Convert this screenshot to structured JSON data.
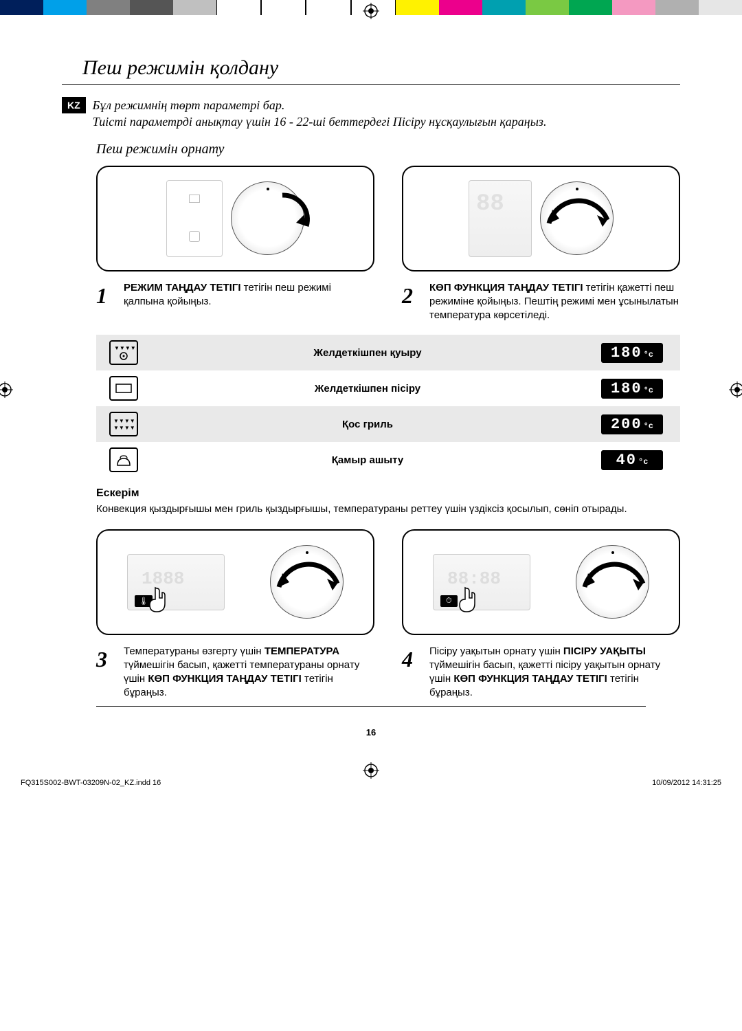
{
  "colorBar": [
    "#001f5b",
    "#00a0e9",
    "#808080",
    "#555555",
    "#c0c0c0",
    "#ffffff",
    "#ffffff",
    "#ffffff",
    "#ffffff",
    "#fff200",
    "#ec008c",
    "#00a0b0",
    "#7ac943",
    "#00a651",
    "#f499c1",
    "#b0b0b0",
    "#e6e6e6"
  ],
  "langBadge": "KZ",
  "title": "Пеш режимін қолдану",
  "intro1": "Бұл режимнің төрт параметрі бар.",
  "intro2": "Тиісті параметрді анықтау үшін 16 - 22-ші беттердегі Пісіру нұсқаулығын қараңыз.",
  "subhead": "Пеш режимін орнату",
  "steps": {
    "s1": {
      "num": "1",
      "bold": "РЕЖИМ ТАҢДАУ ТЕТІГІ",
      "rest": " тетігін пеш режимі қалпына қойыңыз."
    },
    "s2": {
      "num": "2",
      "bold": "КӨП ФУНКЦИЯ ТАҢДАУ ТЕТІГІ",
      "rest": " тетігін қажетті пеш режиміне қойыңыз. Пештің режимі мен ұсынылатын температура көрсетіледі."
    },
    "s3": {
      "num": "3",
      "pre": "Температураны өзгерту үшін ",
      "bold1": "ТЕМПЕРАТУРА",
      "mid": " түймешігін басып, қажетті температураны орнату үшін ",
      "bold2": "КӨП ФУНКЦИЯ ТАҢДАУ ТЕТІГІ",
      "post": " тетігін бұраңыз."
    },
    "s4": {
      "num": "4",
      "pre": "Пісіру уақытын орнату үшін ",
      "bold1": "ПІСІРУ УАҚЫТЫ",
      "mid": " түймешігін басып, қажетті пісіру уақытын орнату үшін ",
      "bold2": "КӨП ФУНКЦИЯ ТАҢДАУ ТЕТІГІ",
      "post": " тетігін бұраңыз."
    }
  },
  "modes": [
    {
      "label": "Желдеткішпен қуыру",
      "temp": "180",
      "shade": true,
      "icon": "fan-top"
    },
    {
      "label": "Желдеткішпен пісіру",
      "temp": "180",
      "shade": false,
      "icon": "box"
    },
    {
      "label": "Қос гриль",
      "temp": "200",
      "shade": true,
      "icon": "grill"
    },
    {
      "label": "Қамыр ашыту",
      "temp": "40",
      "shade": false,
      "icon": "dough"
    }
  ],
  "noteHead": "Ескерім",
  "noteBody": "Конвекция қыздырғышы мен гриль қыздырғышы, температураны реттеу үшін үздіксіз қосылып, сөніп отырады.",
  "pageNum": "16",
  "footerLeft": "FQ315S002-BWT-03209N-02_KZ.indd   16",
  "footerRight": "10/09/2012   14:31:25"
}
